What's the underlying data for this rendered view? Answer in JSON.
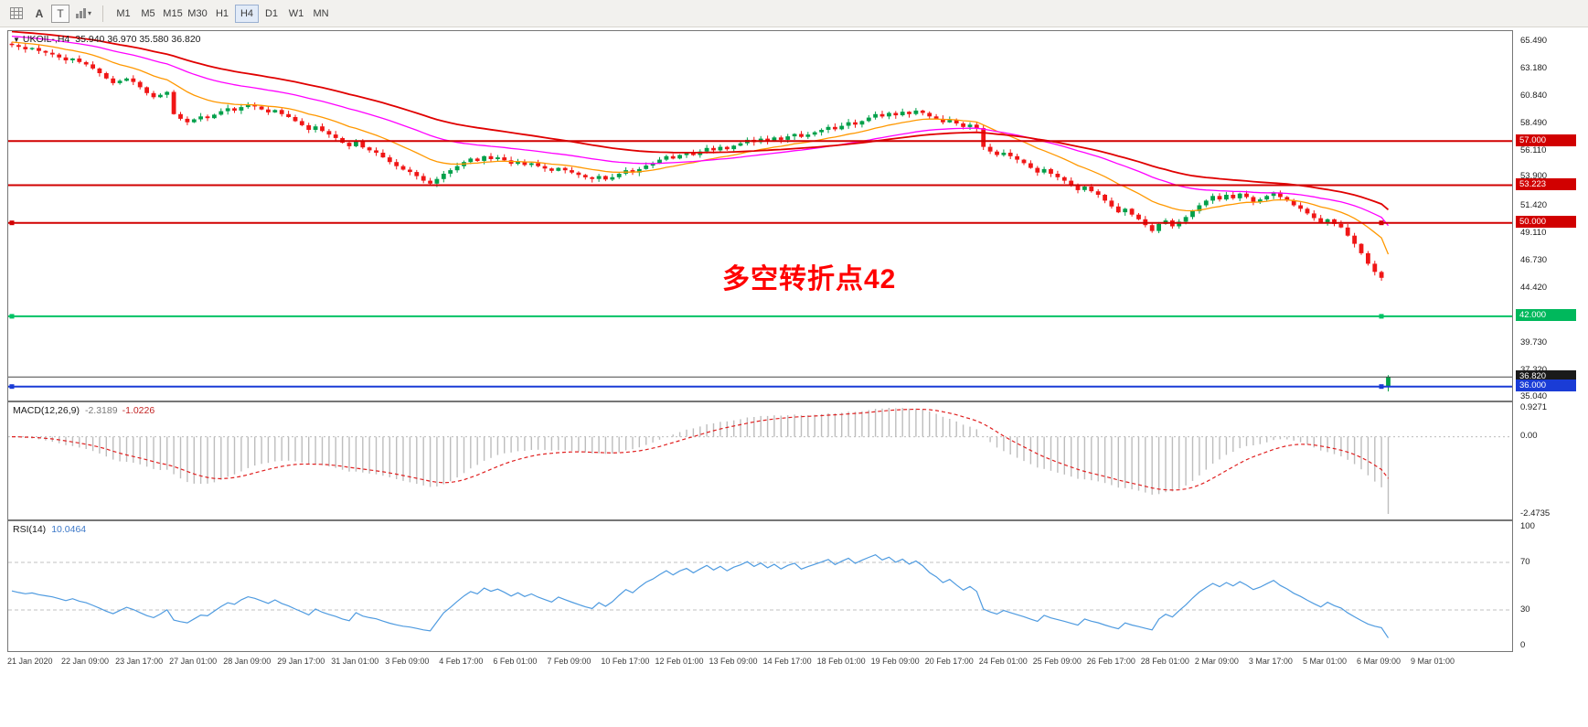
{
  "toolbar": {
    "a_label": "A",
    "t_label": "T",
    "timeframes": [
      {
        "label": "M1",
        "active": false
      },
      {
        "label": "M5",
        "active": false
      },
      {
        "label": "M15",
        "active": false
      },
      {
        "label": "M30",
        "active": false
      },
      {
        "label": "H1",
        "active": false
      },
      {
        "label": "H4",
        "active": true
      },
      {
        "label": "D1",
        "active": false
      },
      {
        "label": "W1",
        "active": false
      },
      {
        "label": "MN",
        "active": false
      }
    ]
  },
  "chart": {
    "symbol_title": "UKOIL-,H4",
    "ohlc_text": "35.940 36.970 35.580 36.820",
    "annotation": "多空转折点42",
    "annotation_color": "#ff0000",
    "colors": {
      "up": "#00a04a",
      "down": "#f01616"
    },
    "price_axis_labels": [
      "65.490",
      "63.180",
      "60.840",
      "58.490",
      "56.110",
      "53.900",
      "51.420",
      "49.110",
      "46.730",
      "44.420",
      "39.730",
      "37.320",
      "35.040"
    ],
    "badges": [
      {
        "text": "57.000",
        "value": 57.0,
        "color": "#d10000"
      },
      {
        "text": "53.223",
        "value": 53.223,
        "color": "#d10000"
      },
      {
        "text": "50.000",
        "value": 50.0,
        "color": "#d10000"
      },
      {
        "text": "42.000",
        "value": 42.0,
        "color": "#00b85c"
      },
      {
        "text": "36.820",
        "value": 36.82,
        "color": "#1a1a1a"
      },
      {
        "text": "36.000",
        "value": 36.0,
        "color": "#1a3cd6"
      }
    ],
    "hlines": [
      {
        "value": 57.0,
        "color": "#d10000",
        "width": 2,
        "handles": false
      },
      {
        "value": 53.223,
        "color": "#d10000",
        "width": 2,
        "handles": false
      },
      {
        "value": 50.0,
        "color": "#d10000",
        "width": 2,
        "handles": true
      },
      {
        "value": 42.0,
        "color": "#00c264",
        "width": 2,
        "handles": true
      },
      {
        "value": 36.0,
        "color": "#1a3cd6",
        "width": 2,
        "handles": true
      },
      {
        "value": 36.82,
        "color": "#454545",
        "width": 1,
        "handles": false
      }
    ]
  },
  "macd_panel": {
    "label": "MACD(12,26,9)",
    "macd_value": "-2.3189",
    "signal_value": "-1.0226",
    "axis": [
      "0.9271",
      "0.00",
      "-2.4735"
    ]
  },
  "rsi_panel": {
    "label": "RSI(14)",
    "value": "10.0464",
    "axis": [
      "100",
      "70",
      "30",
      "0"
    ]
  },
  "chart_data": {
    "type": "candlestick",
    "symbol": "UKOIL-",
    "timeframe": "H4",
    "price_range": [
      34.8,
      66.4
    ],
    "last_bar": {
      "open": 35.94,
      "high": 36.97,
      "low": 35.58,
      "close": 36.82
    },
    "closes": [
      65.2,
      65.05,
      64.85,
      64.95,
      64.7,
      64.55,
      64.4,
      64.15,
      63.9,
      64.05,
      63.75,
      63.55,
      63.2,
      62.8,
      62.35,
      61.95,
      62.15,
      62.35,
      62.05,
      61.6,
      61.1,
      60.75,
      60.95,
      61.2,
      59.3,
      58.9,
      58.6,
      58.85,
      59.1,
      58.95,
      59.25,
      59.55,
      59.8,
      59.6,
      59.9,
      60.1,
      59.95,
      59.7,
      59.45,
      59.65,
      59.3,
      59.05,
      58.7,
      58.35,
      57.95,
      58.25,
      57.85,
      57.55,
      57.25,
      56.85,
      56.55,
      56.95,
      56.45,
      56.2,
      56.0,
      55.6,
      55.2,
      54.85,
      54.55,
      54.35,
      54.0,
      53.6,
      53.35,
      53.75,
      54.2,
      54.5,
      54.85,
      55.2,
      55.5,
      55.3,
      55.7,
      55.45,
      55.6,
      55.35,
      55.05,
      55.25,
      54.95,
      55.1,
      54.85,
      54.65,
      54.45,
      54.7,
      54.5,
      54.3,
      54.1,
      53.9,
      53.75,
      54.0,
      53.7,
      53.9,
      54.2,
      54.5,
      54.3,
      54.6,
      54.9,
      55.1,
      55.4,
      55.7,
      55.5,
      55.8,
      56.0,
      55.8,
      56.1,
      56.4,
      56.2,
      56.5,
      56.3,
      56.6,
      56.8,
      57.1,
      56.9,
      57.2,
      57.0,
      57.3,
      57.1,
      57.4,
      57.6,
      57.35,
      57.55,
      57.75,
      57.95,
      58.2,
      58.0,
      58.3,
      58.6,
      58.4,
      58.7,
      59.0,
      59.3,
      59.1,
      59.4,
      59.2,
      59.5,
      59.3,
      59.6,
      59.4,
      59.1,
      58.9,
      58.6,
      58.8,
      58.5,
      58.2,
      58.4,
      58.1,
      56.5,
      56.1,
      55.8,
      56.0,
      55.7,
      55.4,
      55.1,
      54.7,
      54.3,
      54.6,
      54.2,
      53.9,
      53.6,
      53.2,
      52.8,
      53.1,
      52.7,
      52.4,
      51.9,
      51.4,
      50.9,
      51.2,
      50.7,
      50.3,
      49.8,
      49.3,
      49.9,
      50.2,
      49.7,
      50.1,
      50.5,
      51.0,
      51.5,
      51.9,
      52.3,
      52.0,
      52.4,
      52.1,
      52.5,
      52.2,
      51.8,
      52.0,
      52.3,
      52.6,
      52.2,
      51.9,
      51.5,
      51.2,
      50.8,
      50.4,
      50.0,
      50.3,
      49.9,
      49.6,
      48.9,
      48.2,
      47.4,
      46.5,
      45.8,
      45.3,
      36.82
    ],
    "label_every_n_bars": 8,
    "time_labels": [
      "21 Jan 2020",
      "22 Jan 09:00",
      "23 Jan 17:00",
      "27 Jan 01:00",
      "28 Jan 09:00",
      "29 Jan 17:00",
      "31 Jan 01:00",
      "3 Feb 09:00",
      "4 Feb 17:00",
      "6 Feb 01:00",
      "7 Feb 09:00",
      "10 Feb 17:00",
      "12 Feb 01:00",
      "13 Feb 09:00",
      "14 Feb 17:00",
      "18 Feb 01:00",
      "19 Feb 09:00",
      "20 Feb 17:00",
      "24 Feb 01:00",
      "25 Feb 09:00",
      "26 Feb 17:00",
      "28 Feb 01:00",
      "2 Mar 09:00",
      "3 Mar 17:00",
      "5 Mar 01:00",
      "6 Mar 09:00",
      "9 Mar 01:00"
    ],
    "moving_averages": [
      {
        "name": "fast",
        "period": 16,
        "color": "#ff9800"
      },
      {
        "name": "medium",
        "period": 38,
        "color": "#ff00ff"
      },
      {
        "name": "slow",
        "period": 60,
        "color": "#e00000"
      }
    ],
    "indicators": {
      "macd": {
        "fast": 12,
        "slow": 26,
        "signal": 9,
        "current_macd": -2.3189,
        "current_signal": -1.0226,
        "range": [
          -2.4735,
          0.9271
        ],
        "hist_color": "#bdbdbd",
        "signal_color": "#e02020"
      },
      "rsi": {
        "period": 14,
        "current": 10.0464,
        "levels": [
          70,
          30
        ],
        "range": [
          0,
          100
        ],
        "line_color": "#4f9be0"
      }
    }
  }
}
